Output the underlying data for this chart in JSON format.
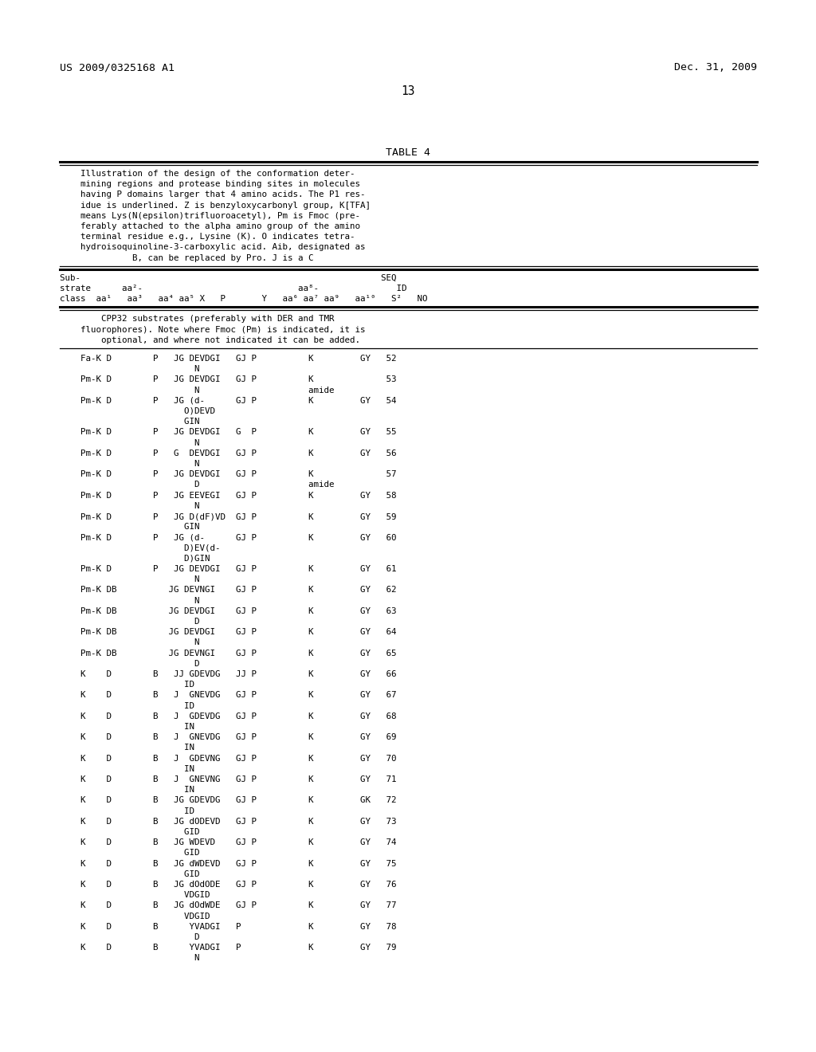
{
  "header_left": "US 2009/0325168 A1",
  "header_right": "Dec. 31, 2009",
  "page_num": "13",
  "table_title": "TABLE 4",
  "bg_color": "#ffffff",
  "text_color": "#000000",
  "caption_lines": [
    "    Illustration of the design of the conformation deter-",
    "    mining regions and protease binding sites in molecules",
    "    having P domains larger that 4 amino acids. The P1 res-",
    "    idue is underlined. Z is benzyloxycarbonyl group, K[TFA]",
    "    means Lys(N(epsilon)trifluoroacetyl), Pm is Fmoc (pre-",
    "    ferably attached to the alpha amino group of the amino",
    "    terminal residue e.g., Lysine (K). O indicates tetra-",
    "    hydroisoquinoline-3-carboxylic acid. Aib, designated as",
    "              B, can be replaced by Pro. J is a C"
  ],
  "col_hdr_lines": [
    "Sub-                                                          SEQ",
    "strate      aa²-                              aa⁸-               ID",
    "class  aa¹   aa³   aa⁴ aa⁵ X   P       Y   aa⁶ aa⁷ aa⁹   aa¹⁰   S²   NO"
  ],
  "section_hdr_lines": [
    "        CPP32 substrates (preferably with DER and TMR",
    "    fluorophores). Note where Fmoc (Pm) is indicated, it is",
    "        optional, and where not indicated it can be added."
  ],
  "data_lines": [
    "    Fa-K D        P   JG DEVDGI   GJ P          K         GY   52",
    "                          N",
    "    Pm-K D        P   JG DEVDGI   GJ P          K              53",
    "                          N                     amide",
    "    Pm-K D        P   JG (d-      GJ P          K         GY   54",
    "                        O)DEVD",
    "                        GIN",
    "    Pm-K D        P   JG DEVDGI   G  P          K         GY   55",
    "                          N",
    "    Pm-K D        P   G  DEVDGI   GJ P          K         GY   56",
    "                          N",
    "    Pm-K D        P   JG DEVDGI   GJ P          K              57",
    "                          D                     amide",
    "    Pm-K D        P   JG EEVEGI   GJ P          K         GY   58",
    "                          N",
    "    Pm-K D        P   JG D(dF)VD  GJ P          K         GY   59",
    "                        GIN",
    "    Pm-K D        P   JG (d-      GJ P          K         GY   60",
    "                        D)EV(d-",
    "                        D)GIN",
    "    Pm-K D        P   JG DEVDGI   GJ P          K         GY   61",
    "                          N",
    "    Pm-K DB          JG DEVNGI    GJ P          K         GY   62",
    "                          N",
    "    Pm-K DB          JG DEVDGI    GJ P          K         GY   63",
    "                          D",
    "    Pm-K DB          JG DEVDGI    GJ P          K         GY   64",
    "                          N",
    "    Pm-K DB          JG DEVNGI    GJ P          K         GY   65",
    "                          D",
    "    K    D        B   JJ GDEVDG   JJ P          K         GY   66",
    "                        ID",
    "    K    D        B   J  GNEVDG   GJ P          K         GY   67",
    "                        ID",
    "    K    D        B   J  GDEVDG   GJ P          K         GY   68",
    "                        IN",
    "    K    D        B   J  GNEVDG   GJ P          K         GY   69",
    "                        IN",
    "    K    D        B   J  GDEVNG   GJ P          K         GY   70",
    "                        IN",
    "    K    D        B   J  GNEVNG   GJ P          K         GY   71",
    "                        IN",
    "    K    D        B   JG GDEVDG   GJ P          K         GK   72",
    "                        ID",
    "    K    D        B   JG dODEVD   GJ P          K         GY   73",
    "                        GID",
    "    K    D        B   JG WDEVD    GJ P          K         GY   74",
    "                        GID",
    "    K    D        B   JG dWDEVD   GJ P          K         GY   75",
    "                        GID",
    "    K    D        B   JG dOdODE   GJ P          K         GY   76",
    "                        VDGID",
    "    K    D        B   JG dOdWDE   GJ P          K         GY   77",
    "                        VDGID",
    "    K    D        B      YVADGI   P             K         GY   78",
    "                          D",
    "    K    D        B      YVADGI   P             K         GY   79",
    "                          N"
  ]
}
